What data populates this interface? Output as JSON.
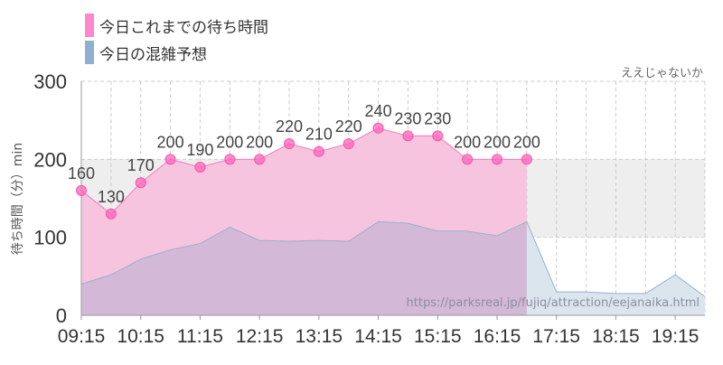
{
  "chart_data": {
    "type": "area",
    "attraction": "ええじゃないか",
    "ylabel": "待ち時間（分）min",
    "ylim": [
      0,
      300
    ],
    "yticks": [
      0,
      100,
      200,
      300
    ],
    "x_tick_labels": [
      "09:15",
      "10:15",
      "11:15",
      "12:15",
      "13:15",
      "14:15",
      "15:15",
      "16:15",
      "17:15",
      "18:15",
      "19:15"
    ],
    "x_range": [
      "09:15",
      "19:45"
    ],
    "grid": true,
    "legend_position": "top-left",
    "watermark": "https://parksreal.jp/fujiq/attraction/eejanaika.html",
    "series": [
      {
        "name": "今日これまでの待ち時間",
        "color": "#ff88cc",
        "points": [
          {
            "time": "09:15",
            "value": 160
          },
          {
            "time": "09:45",
            "value": 130
          },
          {
            "time": "10:15",
            "value": 170
          },
          {
            "time": "10:45",
            "value": 200
          },
          {
            "time": "11:15",
            "value": 190
          },
          {
            "time": "11:45",
            "value": 200
          },
          {
            "time": "12:15",
            "value": 200
          },
          {
            "time": "12:45",
            "value": 220
          },
          {
            "time": "13:15",
            "value": 210
          },
          {
            "time": "13:45",
            "value": 220
          },
          {
            "time": "14:15",
            "value": 240
          },
          {
            "time": "14:45",
            "value": 230
          },
          {
            "time": "15:15",
            "value": 230
          },
          {
            "time": "15:45",
            "value": 200
          },
          {
            "time": "16:15",
            "value": 200
          },
          {
            "time": "16:45",
            "value": 200
          }
        ]
      },
      {
        "name": "今日の混雑予想",
        "color": "#8fb0d0",
        "points": [
          {
            "time": "09:15",
            "value": 40
          },
          {
            "time": "09:45",
            "value": 52
          },
          {
            "time": "10:15",
            "value": 72
          },
          {
            "time": "10:45",
            "value": 84
          },
          {
            "time": "11:15",
            "value": 92
          },
          {
            "time": "11:45",
            "value": 113
          },
          {
            "time": "12:15",
            "value": 96
          },
          {
            "time": "12:45",
            "value": 95
          },
          {
            "time": "13:15",
            "value": 96
          },
          {
            "time": "13:45",
            "value": 95
          },
          {
            "time": "14:15",
            "value": 120
          },
          {
            "time": "14:45",
            "value": 118
          },
          {
            "time": "15:15",
            "value": 108
          },
          {
            "time": "15:45",
            "value": 108
          },
          {
            "time": "16:15",
            "value": 102
          },
          {
            "time": "16:45",
            "value": 120
          },
          {
            "time": "17:15",
            "value": 30
          },
          {
            "time": "17:45",
            "value": 30
          },
          {
            "time": "18:15",
            "value": 28
          },
          {
            "time": "18:45",
            "value": 28
          },
          {
            "time": "19:15",
            "value": 52
          },
          {
            "time": "19:45",
            "value": 24
          }
        ]
      }
    ],
    "shaded_band": {
      "from": 100,
      "to": 200,
      "color": "#eeeeee"
    },
    "colors": {
      "axis": "#999999",
      "grid": "#cccccc",
      "marker": "#ff66bb",
      "past_fill": "#f7c4e0"
    }
  }
}
